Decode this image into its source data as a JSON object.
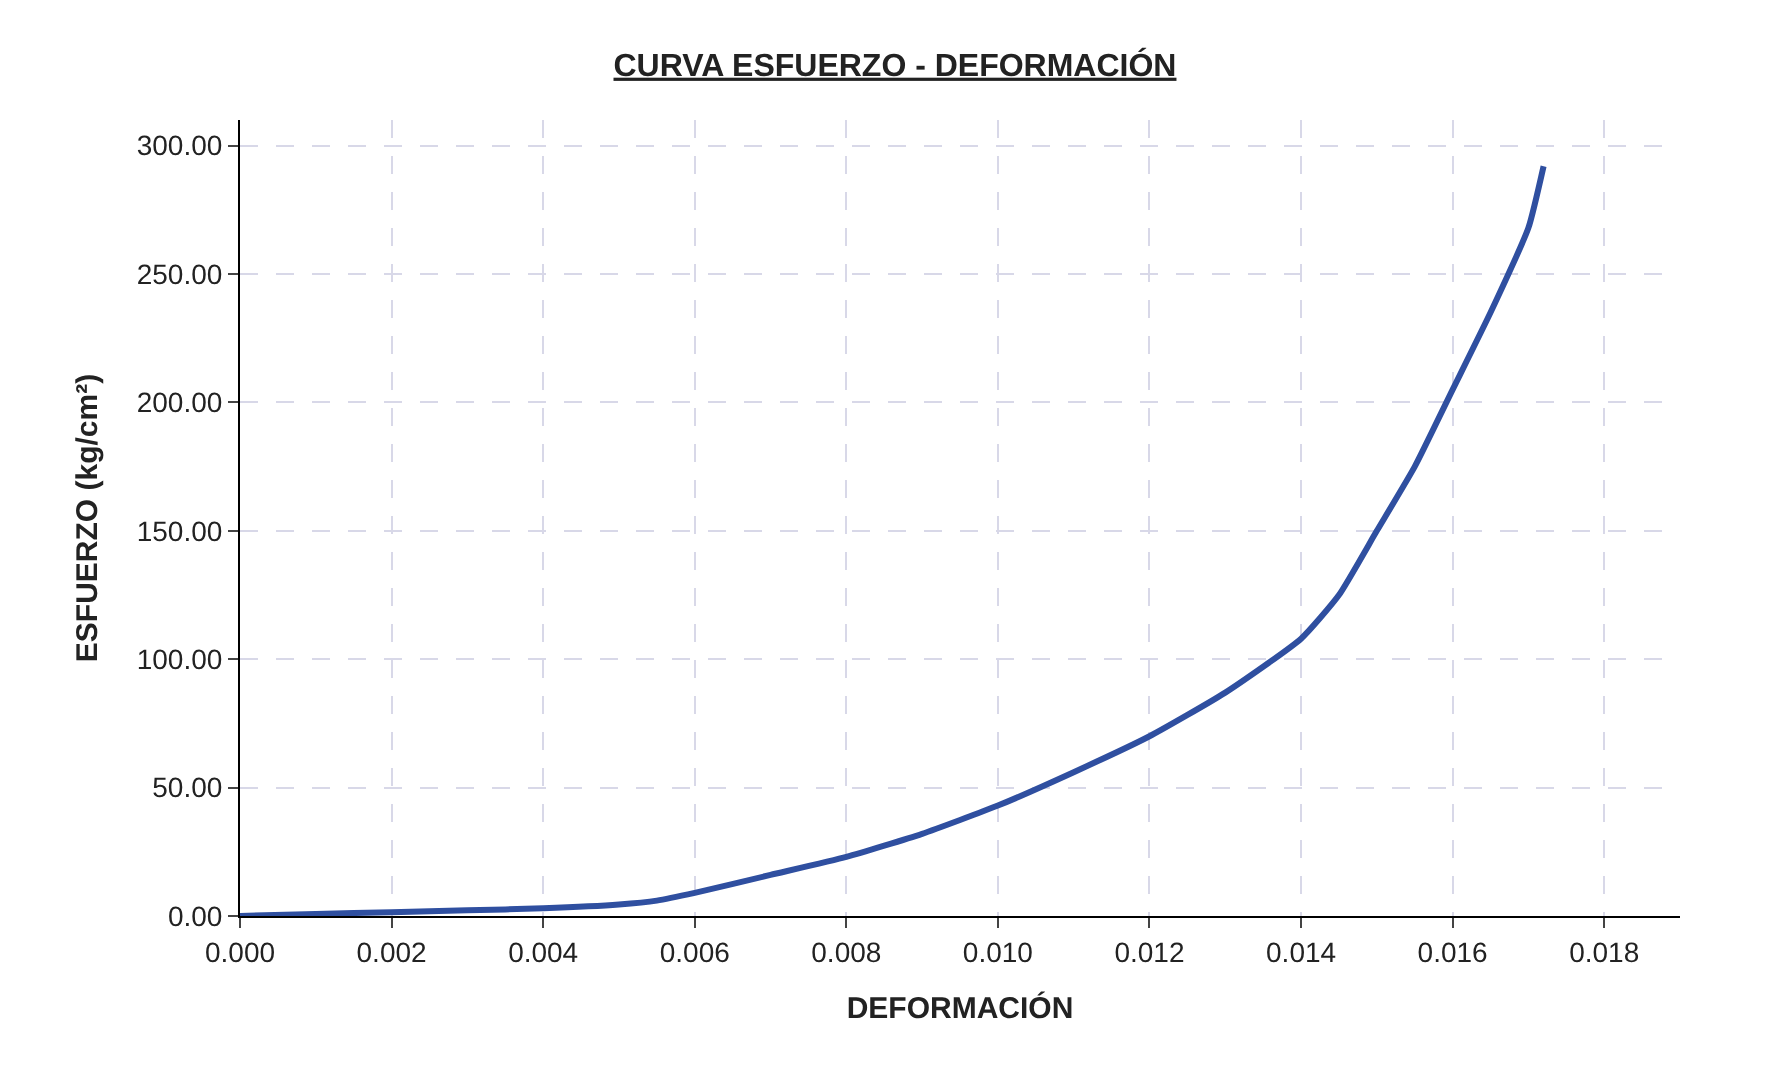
{
  "chart_data": {
    "type": "line",
    "title": "CURVA ESFUERZO - DEFORMACIÓN",
    "xlabel": "DEFORMACIÓN",
    "ylabel": "ESFUERZO (kg/cm²)",
    "x": [
      0,
      0.001,
      0.002,
      0.003,
      0.004,
      0.005,
      0.0055,
      0.006,
      0.007,
      0.008,
      0.009,
      0.01,
      0.011,
      0.012,
      0.013,
      0.014,
      0.0145,
      0.015,
      0.0155,
      0.016,
      0.0165,
      0.017,
      0.0172
    ],
    "series": [
      {
        "color": "#2f4fa0",
        "values": [
          0,
          0.8,
          1.5,
          2.2,
          3,
          4.5,
          6,
          9,
          16,
          23,
          32,
          43,
          56,
          70,
          87,
          108,
          125,
          150,
          175,
          205,
          235,
          268,
          292
        ]
      }
    ],
    "xlim": [
      0,
      0.019
    ],
    "xticks": [
      {
        "value": 0,
        "label": "0.000"
      },
      {
        "value": 0.002,
        "label": "0.002"
      },
      {
        "value": 0.004,
        "label": "0.004"
      },
      {
        "value": 0.006,
        "label": "0.006"
      },
      {
        "value": 0.008,
        "label": "0.008"
      },
      {
        "value": 0.01,
        "label": "0.010"
      },
      {
        "value": 0.012,
        "label": "0.012"
      },
      {
        "value": 0.014,
        "label": "0.014"
      },
      {
        "value": 0.016,
        "label": "0.016"
      },
      {
        "value": 0.018,
        "label": "0.018"
      }
    ],
    "ylim": [
      0,
      310
    ],
    "yticks": [
      {
        "value": 0,
        "label": "0.00"
      },
      {
        "value": 50,
        "label": "50.00"
      },
      {
        "value": 100,
        "label": "100.00"
      },
      {
        "value": 150,
        "label": "150.00"
      },
      {
        "value": 200,
        "label": "200.00"
      },
      {
        "value": 250,
        "label": "250.00"
      },
      {
        "value": 300,
        "label": "300.00"
      }
    ],
    "grid": true,
    "marker": "none",
    "line_style": "solid"
  }
}
